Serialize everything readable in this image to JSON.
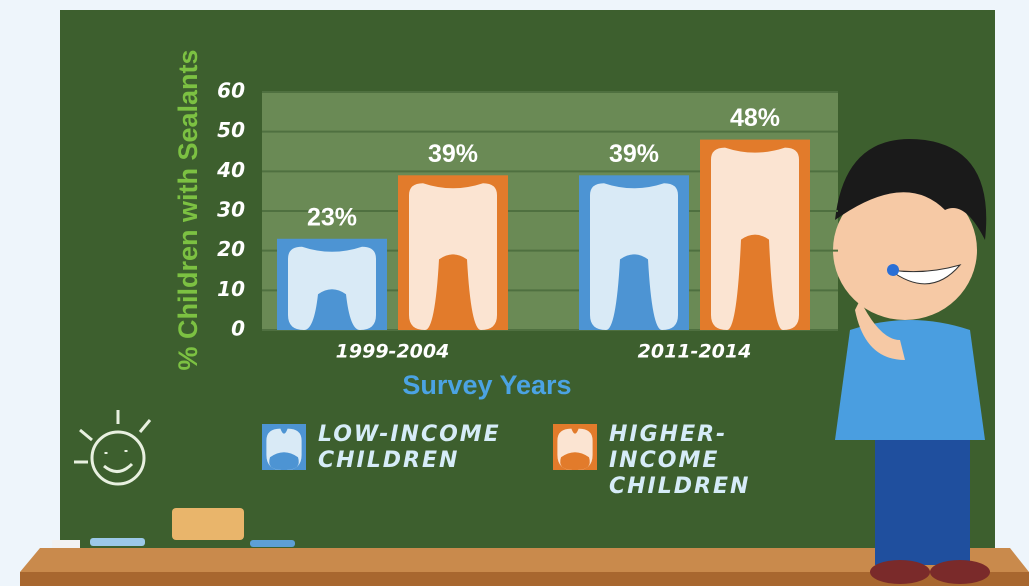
{
  "chart_data": {
    "type": "bar",
    "y_label": "% Children with Sealants",
    "x_label": "Survey Years",
    "categories": [
      "1999-2004",
      "2011-2014"
    ],
    "series": [
      {
        "name": "Low-Income Children",
        "color": "#4d94d3",
        "values": [
          23,
          39
        ],
        "value_labels": [
          "23%",
          "39%"
        ]
      },
      {
        "name": "Higher-Income Children",
        "color": "#e27b2b",
        "values": [
          39,
          48
        ],
        "value_labels": [
          "39%",
          "48%"
        ]
      }
    ],
    "ylim": [
      0,
      60
    ],
    "yticks": [
      0,
      10,
      20,
      30,
      40,
      50,
      60
    ],
    "grid": true
  }
}
